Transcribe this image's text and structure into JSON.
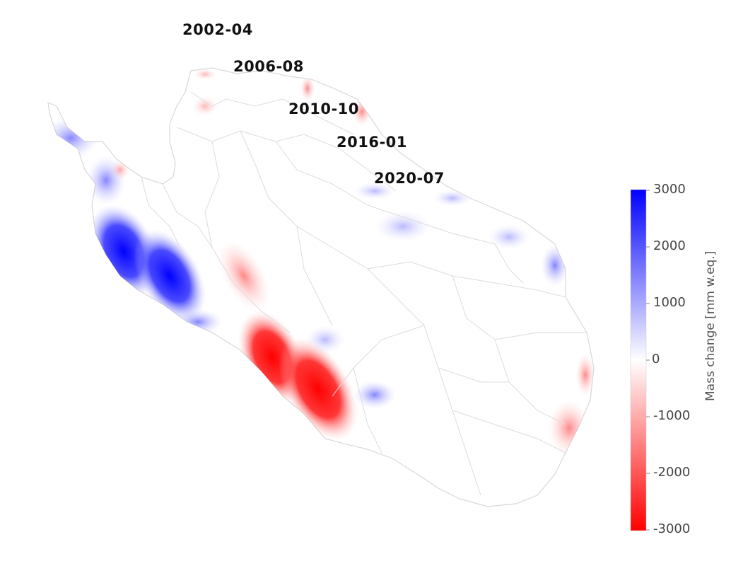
{
  "map": {
    "epochs": [
      {
        "id": "e0",
        "label": "2002-04"
      },
      {
        "id": "e1",
        "label": "2006-08"
      },
      {
        "id": "e2",
        "label": "2010-10"
      },
      {
        "id": "e3",
        "label": "2016-01"
      },
      {
        "id": "e4",
        "label": "2020-07"
      }
    ],
    "map_features": {
      "base": "white region with light gray basin outlines",
      "gain_color": "#0000ff",
      "loss_color": "#ff0000"
    }
  },
  "colorbar": {
    "title": "Mass change [mm w.eq.]",
    "ticks": [
      "3000",
      "2000",
      "1000",
      "0",
      "-1000",
      "-2000",
      "-3000"
    ],
    "range": [
      -3000,
      3000
    ],
    "colors": {
      "max": "#0000ff",
      "mid": "#ffffff",
      "min": "#ff0000"
    }
  }
}
